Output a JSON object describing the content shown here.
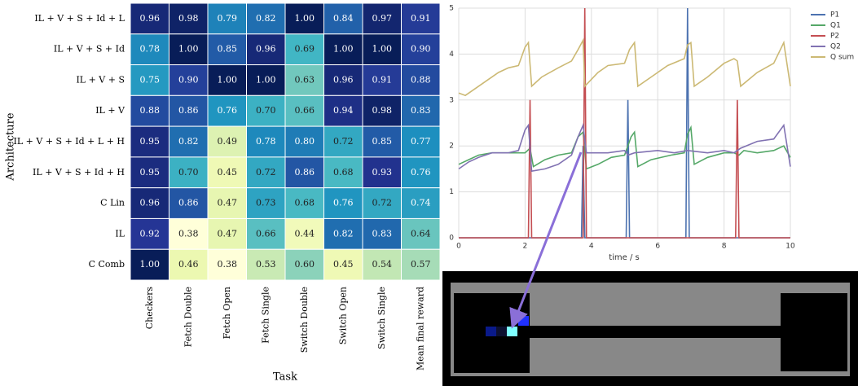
{
  "chart_data": [
    {
      "type": "heatmap",
      "xlabel": "Task",
      "ylabel": "Architecture",
      "colormap": "YlGnBu",
      "columns": [
        "Checkers",
        "Fetch Double",
        "Fetch Open",
        "Fetch Single",
        "Switch Double",
        "Switch Open",
        "Switch Single",
        "Mean final reward"
      ],
      "rows": [
        "IL + V + S + Id + L",
        "IL + V + S + Id",
        "IL + V + S",
        "IL + V",
        "IL + V + S + Id + L + H",
        "IL + V + S + Id + H",
        "C Lin",
        "IL",
        "C Comb"
      ],
      "values": [
        [
          0.96,
          0.98,
          0.79,
          0.82,
          1.0,
          0.84,
          0.97,
          0.91
        ],
        [
          0.78,
          1.0,
          0.85,
          0.96,
          0.69,
          1.0,
          1.0,
          0.9
        ],
        [
          0.75,
          0.9,
          1.0,
          1.0,
          0.63,
          0.96,
          0.91,
          0.88
        ],
        [
          0.88,
          0.86,
          0.76,
          0.7,
          0.66,
          0.94,
          0.98,
          0.83
        ],
        [
          0.95,
          0.82,
          0.49,
          0.78,
          0.8,
          0.72,
          0.85,
          0.77
        ],
        [
          0.95,
          0.7,
          0.45,
          0.72,
          0.86,
          0.68,
          0.93,
          0.76
        ],
        [
          0.96,
          0.86,
          0.47,
          0.73,
          0.68,
          0.76,
          0.72,
          0.74
        ],
        [
          0.92,
          0.38,
          0.47,
          0.66,
          0.44,
          0.82,
          0.83,
          0.64
        ],
        [
          1.0,
          0.46,
          0.38,
          0.53,
          0.6,
          0.45,
          0.54,
          0.57
        ]
      ],
      "value_labels": [
        [
          "0.96",
          "0.98",
          "0.79",
          "0.82",
          "1.00",
          "0.84",
          "0.97",
          "0.91"
        ],
        [
          "0.78",
          "1.00",
          "0.85",
          "0.96",
          "0.69",
          "1.00",
          "1.00",
          "0.90"
        ],
        [
          "0.75",
          "0.90",
          "1.00",
          "1.00",
          "0.63",
          "0.96",
          "0.91",
          "0.88"
        ],
        [
          "0.88",
          "0.86",
          "0.76",
          "0.70",
          "0.66",
          "0.94",
          "0.98",
          "0.83"
        ],
        [
          "0.95",
          "0.82",
          "0.49",
          "0.78",
          "0.80",
          "0.72",
          "0.85",
          "0.77"
        ],
        [
          "0.95",
          "0.70",
          "0.45",
          "0.72",
          "0.86",
          "0.68",
          "0.93",
          "0.76"
        ],
        [
          "0.96",
          "0.86",
          "0.47",
          "0.73",
          "0.68",
          "0.76",
          "0.72",
          "0.74"
        ],
        [
          "0.92",
          "0.38",
          "0.47",
          "0.66",
          "0.44",
          "0.82",
          "0.83",
          "0.64"
        ],
        [
          "1.00",
          "0.46",
          "0.38",
          "0.53",
          "0.60",
          "0.45",
          "0.54",
          "0.57"
        ]
      ]
    },
    {
      "type": "line",
      "xlabel": "time / s",
      "xlim": [
        0,
        10
      ],
      "xticks": [
        0,
        2,
        4,
        6,
        8,
        10
      ],
      "ylim": [
        0,
        5
      ],
      "yticks": [
        0,
        1,
        2,
        3,
        4,
        5
      ],
      "grid": true,
      "legend": "outside right",
      "series": [
        {
          "name": "P1",
          "color": "#4c72b0",
          "x": [
            0,
            3.7,
            3.75,
            3.8,
            5.05,
            5.1,
            5.15,
            6.85,
            6.9,
            6.95,
            10
          ],
          "values": [
            0,
            0,
            2.0,
            0,
            0,
            3.0,
            0,
            0,
            5.0,
            0,
            0
          ]
        },
        {
          "name": "Q1",
          "color": "#55a868",
          "x": [
            0,
            0.3,
            0.6,
            1.0,
            1.5,
            2.0,
            2.15,
            2.25,
            2.6,
            3.0,
            3.4,
            3.6,
            3.75,
            3.85,
            4.2,
            4.6,
            5.0,
            5.2,
            5.3,
            5.4,
            5.8,
            6.4,
            6.8,
            6.9,
            7.0,
            7.1,
            7.5,
            8.0,
            8.3,
            8.45,
            8.6,
            9.0,
            9.5,
            9.8,
            10
          ],
          "values": [
            1.6,
            1.7,
            1.8,
            1.85,
            1.85,
            1.85,
            1.95,
            1.55,
            1.7,
            1.8,
            1.85,
            2.2,
            2.3,
            1.5,
            1.6,
            1.75,
            1.8,
            2.2,
            2.3,
            1.55,
            1.7,
            1.8,
            1.85,
            2.25,
            2.4,
            1.6,
            1.75,
            1.85,
            1.85,
            1.8,
            1.9,
            1.85,
            1.9,
            2.0,
            1.75
          ]
        },
        {
          "name": "P2",
          "color": "#c44e52",
          "x": [
            0,
            2.1,
            2.15,
            2.2,
            3.75,
            3.8,
            3.85,
            8.35,
            8.4,
            8.45,
            10
          ],
          "values": [
            0,
            0,
            3.0,
            0,
            0,
            5.0,
            0,
            0,
            3.0,
            0,
            0
          ]
        },
        {
          "name": "Q2",
          "color": "#8172b2",
          "x": [
            0,
            0.3,
            0.6,
            1.0,
            1.5,
            1.8,
            2.0,
            2.1,
            2.2,
            2.6,
            3.0,
            3.4,
            3.6,
            3.75,
            3.85,
            4.5,
            5.0,
            5.1,
            5.3,
            6.0,
            6.5,
            6.9,
            7.5,
            8.0,
            8.3,
            8.5,
            9.0,
            9.5,
            9.8,
            10
          ],
          "values": [
            1.5,
            1.65,
            1.75,
            1.85,
            1.85,
            1.9,
            2.35,
            2.45,
            1.45,
            1.5,
            1.6,
            1.8,
            2.2,
            2.45,
            1.85,
            1.85,
            1.9,
            1.8,
            1.85,
            1.9,
            1.85,
            1.9,
            1.85,
            1.9,
            1.85,
            1.95,
            2.1,
            2.15,
            2.45,
            1.55
          ]
        },
        {
          "name": "Q sum",
          "color": "#ccb974",
          "x": [
            0,
            0.2,
            0.5,
            0.8,
            1.2,
            1.5,
            1.8,
            2.0,
            2.1,
            2.2,
            2.5,
            3.0,
            3.4,
            3.6,
            3.75,
            3.8,
            4.2,
            4.5,
            5.0,
            5.15,
            5.3,
            5.4,
            5.8,
            6.3,
            6.8,
            6.9,
            7.0,
            7.1,
            7.5,
            8.0,
            8.3,
            8.4,
            8.5,
            9.0,
            9.5,
            9.8,
            10
          ],
          "values": [
            3.15,
            3.1,
            3.25,
            3.4,
            3.6,
            3.7,
            3.75,
            4.15,
            4.25,
            3.3,
            3.5,
            3.7,
            3.85,
            4.1,
            4.3,
            3.3,
            3.6,
            3.75,
            3.8,
            4.1,
            4.25,
            3.3,
            3.5,
            3.75,
            3.9,
            4.2,
            4.25,
            3.3,
            3.5,
            3.8,
            3.9,
            3.85,
            3.3,
            3.6,
            3.8,
            4.25,
            3.3
          ]
        }
      ]
    }
  ]
}
